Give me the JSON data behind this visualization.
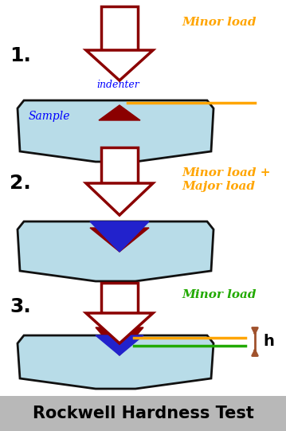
{
  "bg_color": "#ffffff",
  "footer_color": "#b8b8b8",
  "footer_text": "Rockwell Hardness Test",
  "footer_fontsize": 15,
  "sample_color": "#b8dce8",
  "sample_edge_color": "#111111",
  "arrow_fill": "#ffffff",
  "blue_indent": "#2222cc",
  "dark_red": "#8b0000",
  "orange_color": "#FFA500",
  "green_color": "#22aa00",
  "brown_color": "#a0522d",
  "label1": "1.",
  "label2": "2.",
  "label3": "3.",
  "text_minor": "Minor load",
  "text_minor_major": "Minor load +\nMajor load",
  "text_minor3": "Minor load",
  "text_indenter": "indenter",
  "text_sample": "Sample",
  "text_h": "h"
}
